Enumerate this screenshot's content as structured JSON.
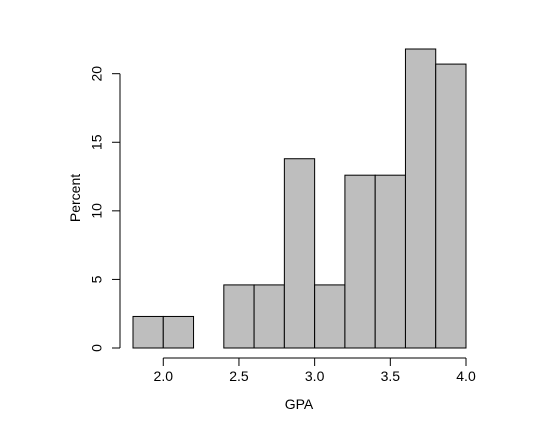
{
  "chart_data": {
    "type": "bar",
    "title": "",
    "xlabel": "GPA",
    "ylabel": "Percent",
    "bins": [
      {
        "x0": 1.8,
        "x1": 2.0,
        "value": 2.3
      },
      {
        "x0": 2.0,
        "x1": 2.2,
        "value": 2.3
      },
      {
        "x0": 2.2,
        "x1": 2.4,
        "value": 0
      },
      {
        "x0": 2.4,
        "x1": 2.6,
        "value": 4.6
      },
      {
        "x0": 2.6,
        "x1": 2.8,
        "value": 4.6
      },
      {
        "x0": 2.8,
        "x1": 3.0,
        "value": 13.8
      },
      {
        "x0": 3.0,
        "x1": 3.2,
        "value": 4.6
      },
      {
        "x0": 3.2,
        "x1": 3.4,
        "value": 12.6
      },
      {
        "x0": 3.4,
        "x1": 3.6,
        "value": 12.6
      },
      {
        "x0": 3.6,
        "x1": 3.8,
        "value": 21.8
      },
      {
        "x0": 3.8,
        "x1": 4.0,
        "value": 20.7
      }
    ],
    "xlim": [
      1.8,
      4.0
    ],
    "ylim": [
      0,
      21.8
    ],
    "xticks": [
      2.0,
      2.5,
      3.0,
      3.5,
      4.0
    ],
    "xtick_labels": [
      "2.0",
      "2.5",
      "3.0",
      "3.5",
      "4.0"
    ],
    "yticks": [
      0,
      5,
      10,
      15,
      20
    ],
    "ytick_labels": [
      "0",
      "5",
      "10",
      "15",
      "20"
    ],
    "grid": false,
    "bar_fill": "#bebebe",
    "bar_stroke": "#000000"
  }
}
